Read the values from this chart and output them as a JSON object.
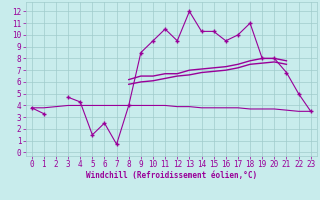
{
  "x_values": [
    0,
    1,
    2,
    3,
    4,
    5,
    6,
    7,
    8,
    9,
    10,
    11,
    12,
    13,
    14,
    15,
    16,
    17,
    18,
    19,
    20,
    21,
    22,
    23
  ],
  "line1_y": [
    3.8,
    3.3,
    null,
    4.7,
    4.3,
    1.5,
    2.5,
    0.7,
    4.0,
    8.5,
    9.5,
    10.5,
    9.5,
    12.0,
    10.3,
    10.3,
    9.5,
    10.0,
    11.0,
    8.0,
    8.0,
    6.8,
    5.0,
    3.5
  ],
  "line2_y": [
    3.8,
    null,
    null,
    null,
    null,
    null,
    null,
    null,
    6.2,
    6.5,
    6.5,
    6.7,
    6.7,
    7.0,
    7.1,
    7.2,
    7.3,
    7.5,
    7.8,
    8.0,
    8.0,
    7.8,
    null,
    null
  ],
  "line3_y": [
    3.8,
    null,
    null,
    null,
    null,
    null,
    null,
    null,
    5.8,
    6.0,
    6.1,
    6.3,
    6.5,
    6.6,
    6.8,
    6.9,
    7.0,
    7.2,
    7.5,
    7.6,
    7.7,
    7.5,
    null,
    null
  ],
  "line4_y": [
    3.8,
    3.8,
    3.9,
    4.0,
    4.0,
    4.0,
    4.0,
    4.0,
    4.0,
    4.0,
    4.0,
    4.0,
    3.9,
    3.9,
    3.8,
    3.8,
    3.8,
    3.8,
    3.7,
    3.7,
    3.7,
    3.6,
    3.5,
    3.5
  ],
  "color": "#990099",
  "bg_color": "#c8ecec",
  "grid_color": "#a0cccc",
  "xlabel": "Windchill (Refroidissement éolien,°C)",
  "ylim": [
    -0.3,
    12.8
  ],
  "xlim": [
    -0.5,
    23.5
  ],
  "yticks": [
    0,
    1,
    2,
    3,
    4,
    5,
    6,
    7,
    8,
    9,
    10,
    11,
    12
  ],
  "xticks": [
    0,
    1,
    2,
    3,
    4,
    5,
    6,
    7,
    8,
    9,
    10,
    11,
    12,
    13,
    14,
    15,
    16,
    17,
    18,
    19,
    20,
    21,
    22,
    23
  ],
  "tick_fontsize": 5.5,
  "label_fontsize": 5.5
}
